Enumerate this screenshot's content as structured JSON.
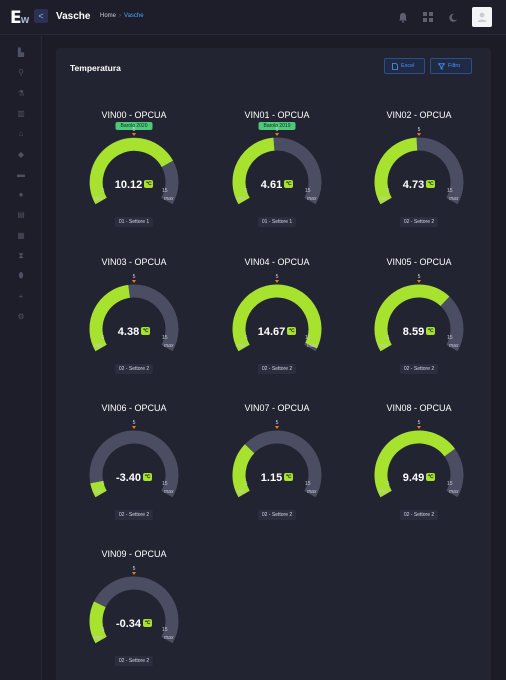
{
  "app": {
    "logo_text": "E",
    "logo_sub": "W",
    "collapse_glyph": "<",
    "title": "Vasche",
    "breadcrumb": [
      "Home",
      "Vasche"
    ]
  },
  "topbar_icons": [
    "bell-icon",
    "grid-icon",
    "moon-icon",
    "user-icon"
  ],
  "sidebar_icons": [
    "factory-icon",
    "wine-glass-icon",
    "flask-icon",
    "trash-icon",
    "building-icon",
    "tag-icon",
    "folder-icon",
    "bell-icon",
    "database-icon",
    "barrel-icon",
    "hourglass-icon",
    "drop-icon",
    "plus-icon",
    "settings-icon"
  ],
  "card": {
    "title": "Temperatura",
    "excel_label": "Excel",
    "filter_label": "Filtro"
  },
  "colors": {
    "fill": "#a6e22e",
    "track": "#4b4d63",
    "marker": "#f07a1a",
    "badge": "#4cc97a"
  },
  "gauges": [
    {
      "name": "VIN00 - OPCUA",
      "badge": "Barolo 2020",
      "setpoint": "5",
      "value": "10.12",
      "value_num": 10.12,
      "min": "-5",
      "max": "15",
      "min_label": "min",
      "max_label": "max",
      "sector": "01 - Settore 1"
    },
    {
      "name": "VIN01 - OPCUA",
      "badge": "Barolo 2019",
      "setpoint": "5",
      "value": "4.61",
      "value_num": 4.61,
      "min": "-5",
      "max": "15",
      "min_label": "min",
      "max_label": "max",
      "sector": "01 - Settore 1"
    },
    {
      "name": "VIN02 - OPCUA",
      "badge": "",
      "setpoint": "5",
      "value": "4.73",
      "value_num": 4.73,
      "min": "-5",
      "max": "15",
      "min_label": "min",
      "max_label": "max",
      "sector": "02 - Settore 2"
    },
    {
      "name": "VIN03 - OPCUA",
      "badge": "",
      "setpoint": "5",
      "value": "4.38",
      "value_num": 4.38,
      "min": "-5",
      "max": "15",
      "min_label": "min",
      "max_label": "max",
      "sector": "02 - Settore 2"
    },
    {
      "name": "VIN04 - OPCUA",
      "badge": "",
      "setpoint": "5",
      "value": "14.67",
      "value_num": 14.67,
      "min": "-5",
      "max": "15",
      "min_label": "min",
      "max_label": "max",
      "sector": "02 - Settore 2"
    },
    {
      "name": "VIN05 - OPCUA",
      "badge": "",
      "setpoint": "5",
      "value": "8.59",
      "value_num": 8.59,
      "min": "-5",
      "max": "15",
      "min_label": "min",
      "max_label": "max",
      "sector": "02 - Settore 2"
    },
    {
      "name": "VIN06 - OPCUA",
      "badge": "",
      "setpoint": "5",
      "value": "-3.40",
      "value_num": -3.4,
      "min": "-5",
      "max": "15",
      "min_label": "min",
      "max_label": "max",
      "sector": "02 - Settore 2"
    },
    {
      "name": "VIN07 - OPCUA",
      "badge": "",
      "setpoint": "5",
      "value": "1.15",
      "value_num": 1.15,
      "min": "-5",
      "max": "15",
      "min_label": "min",
      "max_label": "max",
      "sector": "02 - Settore 2"
    },
    {
      "name": "VIN08 - OPCUA",
      "badge": "",
      "setpoint": "5",
      "value": "9.49",
      "value_num": 9.49,
      "min": "-5",
      "max": "15",
      "min_label": "min",
      "max_label": "max",
      "sector": "02 - Settore 2"
    },
    {
      "name": "VIN09 - OPCUA",
      "badge": "",
      "setpoint": "5",
      "value": "-0.34",
      "value_num": -0.34,
      "min": "-5",
      "max": "15",
      "min_label": "min",
      "max_label": "max",
      "sector": "02 - Settore 2"
    }
  ]
}
